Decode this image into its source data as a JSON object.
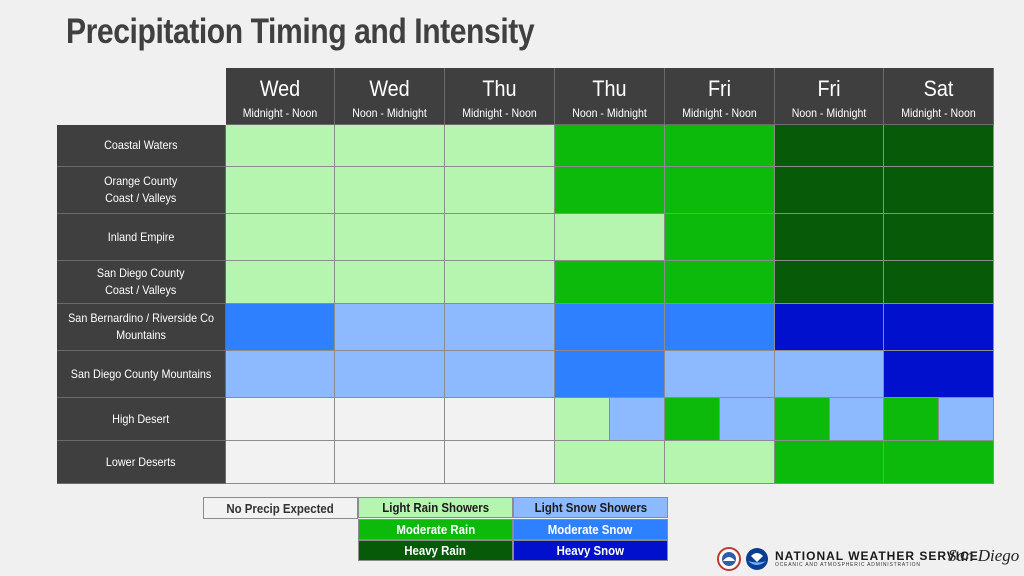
{
  "title": "Precipitation Timing and Intensity",
  "chart_data": {
    "type": "table",
    "columns": [
      {
        "day": "Wed",
        "period": "Midnight - Noon"
      },
      {
        "day": "Wed",
        "period": "Noon - Midnight"
      },
      {
        "day": "Thu",
        "period": "Midnight - Noon"
      },
      {
        "day": "Thu",
        "period": "Noon - Midnight"
      },
      {
        "day": "Fri",
        "period": "Midnight - Noon"
      },
      {
        "day": "Fri",
        "period": "Noon - Midnight"
      },
      {
        "day": "Sat",
        "period": "Midnight - Noon"
      }
    ],
    "rows": [
      {
        "label": "Coastal Waters",
        "cells": [
          [
            "light_rain"
          ],
          [
            "light_rain"
          ],
          [
            "light_rain"
          ],
          [
            "moderate_rain"
          ],
          [
            "moderate_rain"
          ],
          [
            "heavy_rain"
          ],
          [
            "heavy_rain"
          ]
        ]
      },
      {
        "label": "Orange County\nCoast / Valleys",
        "cells": [
          [
            "light_rain"
          ],
          [
            "light_rain"
          ],
          [
            "light_rain"
          ],
          [
            "moderate_rain"
          ],
          [
            "moderate_rain"
          ],
          [
            "heavy_rain"
          ],
          [
            "heavy_rain"
          ]
        ]
      },
      {
        "label": "Inland Empire",
        "cells": [
          [
            "light_rain"
          ],
          [
            "light_rain"
          ],
          [
            "light_rain"
          ],
          [
            "light_rain"
          ],
          [
            "moderate_rain"
          ],
          [
            "heavy_rain"
          ],
          [
            "heavy_rain"
          ]
        ]
      },
      {
        "label": "San Diego County\nCoast / Valleys",
        "cells": [
          [
            "light_rain"
          ],
          [
            "light_rain"
          ],
          [
            "light_rain"
          ],
          [
            "moderate_rain"
          ],
          [
            "moderate_rain"
          ],
          [
            "heavy_rain"
          ],
          [
            "heavy_rain"
          ]
        ]
      },
      {
        "label": "San Bernardino / Riverside Co\nMountains",
        "cells": [
          [
            "moderate_snow"
          ],
          [
            "light_snow"
          ],
          [
            "light_snow"
          ],
          [
            "moderate_snow"
          ],
          [
            "moderate_snow"
          ],
          [
            "heavy_snow"
          ],
          [
            "heavy_snow"
          ]
        ]
      },
      {
        "label": "San Diego County Mountains",
        "cells": [
          [
            "light_snow"
          ],
          [
            "light_snow"
          ],
          [
            "light_snow"
          ],
          [
            "moderate_snow"
          ],
          [
            "light_snow"
          ],
          [
            "light_snow"
          ],
          [
            "heavy_snow"
          ]
        ]
      },
      {
        "label": "High Desert",
        "cells": [
          [
            "none"
          ],
          [
            "none"
          ],
          [
            "none"
          ],
          [
            "light_rain",
            "light_snow"
          ],
          [
            "moderate_rain",
            "light_snow"
          ],
          [
            "moderate_rain",
            "light_snow"
          ],
          [
            "moderate_rain",
            "light_snow"
          ]
        ]
      },
      {
        "label": "Lower Deserts",
        "cells": [
          [
            "none"
          ],
          [
            "none"
          ],
          [
            "none"
          ],
          [
            "light_rain"
          ],
          [
            "light_rain"
          ],
          [
            "moderate_rain"
          ],
          [
            "moderate_rain"
          ]
        ]
      }
    ],
    "legend": [
      {
        "key": "none",
        "label": "No Precip Expected",
        "color": "#f2f2f2",
        "text_color": "#333333"
      },
      {
        "key": "light_rain",
        "label": "Light Rain Showers",
        "color": "#b5f5b0",
        "text_color": "#1a1a1a"
      },
      {
        "key": "moderate_rain",
        "label": "Moderate Rain",
        "color": "#0cba0c",
        "text_color": "#ffffff"
      },
      {
        "key": "heavy_rain",
        "label": "Heavy Rain",
        "color": "#075a07",
        "text_color": "#ffffff"
      },
      {
        "key": "light_snow",
        "label": "Light Snow Showers",
        "color": "#8cb9ff",
        "text_color": "#1a1a1a"
      },
      {
        "key": "moderate_snow",
        "label": "Moderate Snow",
        "color": "#2f80ff",
        "text_color": "#ffffff"
      },
      {
        "key": "heavy_snow",
        "label": "Heavy Snow",
        "color": "#0010cc",
        "text_color": "#ffffff"
      }
    ]
  },
  "footer": {
    "agency": "NATIONAL WEATHER SERVICE",
    "sub_agency": "OCEANIC AND ATMOSPHERIC ADMINISTRATION",
    "office": "San Diego"
  }
}
